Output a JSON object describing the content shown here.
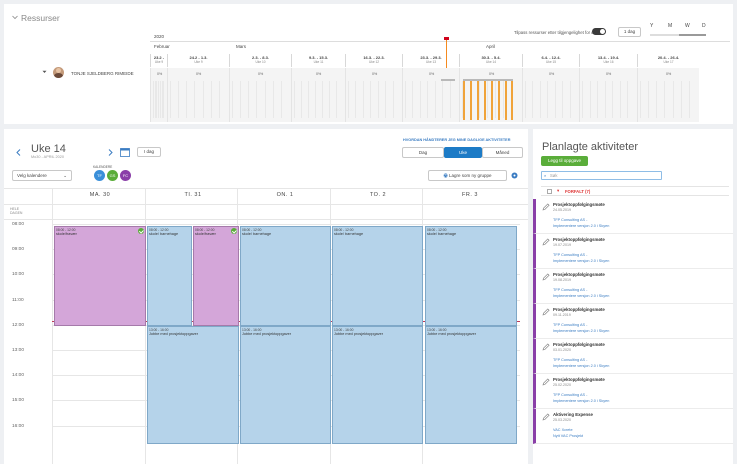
{
  "resources": {
    "title": "Ressurser",
    "show_capacity_label": "Tilpass ressurser etter tilgjengelighet for dag",
    "range_button": "1 dag",
    "zoom_options": [
      "Y",
      "M",
      "W",
      "D"
    ],
    "year": "2020",
    "months": [
      "Februar",
      "Mars",
      "April"
    ],
    "weeks": [
      {
        "date": "23.2 -",
        "week": "Uke 9"
      },
      {
        "date": "24.2 - 1.3.",
        "week": "Uke 9"
      },
      {
        "date": "2.3. - 8.3.",
        "week": "Uke 10"
      },
      {
        "date": "9.3. - 15.3.",
        "week": "Uke 11"
      },
      {
        "date": "16.3. - 22.3.",
        "week": "Uke 12"
      },
      {
        "date": "23.3. - 29.3.",
        "week": "Uke 13"
      },
      {
        "date": "30.3. - 5.4.",
        "week": "Uke 14"
      },
      {
        "date": "6.4. - 12.4.",
        "week": "Uke 15"
      },
      {
        "date": "13.4. - 19.4.",
        "week": "Uke 16"
      },
      {
        "date": "20.4. - 26.4.",
        "week": "Uke 17"
      }
    ],
    "person": "TONJE SJELDBERG RIMEIDE",
    "percent": [
      "0%",
      "0%",
      "0%",
      "0%",
      "0%",
      "0%",
      "0%",
      "0%",
      "0%",
      "0%"
    ]
  },
  "calendar": {
    "week_title": "Uke 14",
    "date_range": "Mo30 - APRIL 2020",
    "today_button": "I dag",
    "copy_link": "HVORDAN HÅNDTERER JEG MINE DAGLIGE AKTIVITETER",
    "views": [
      "Dag",
      "Uke",
      "Måned"
    ],
    "active_view": "Uke",
    "calendar_select": "Velg kalendere",
    "calendars_label": "KALENDERE",
    "calendar_circles": [
      {
        "initials": "TF",
        "color": "#3a8fd9"
      },
      {
        "initials": "GS",
        "color": "#5aad3a"
      },
      {
        "initials": "FC",
        "color": "#8a3fa8"
      }
    ],
    "save_group_button": "Lagre som ny gruppe",
    "days": [
      "MA. 30",
      "TI. 31",
      "ON. 1",
      "TO. 2",
      "FR. 3"
    ],
    "hours": [
      "08:00",
      "09:00",
      "10:00",
      "11:00",
      "12:00",
      "13:00",
      "14:00",
      "15:00",
      "16:00"
    ],
    "allday_label": "HELE DAGEN",
    "events": [
      {
        "time": "08:00 - 12:00",
        "title": "skole/fravær",
        "color": "purple"
      },
      {
        "time": "08:00 - 12:00",
        "title": "skole/ barnehage",
        "color": "blue"
      },
      {
        "time": "08:00 - 12:00",
        "title": "skole/fravær",
        "color": "purple"
      },
      {
        "time": "08:00 - 12:00",
        "title": "skole/ barnehage",
        "color": "blue"
      },
      {
        "time": "08:00 - 12:00",
        "title": "skole/ barnehage",
        "color": "blue"
      },
      {
        "time": "08:00 - 12:00",
        "title": "skole/ barnehage",
        "color": "blue"
      },
      {
        "time": "13:00 - 16:00",
        "title": "Jobbe med prosjektoppgaver",
        "color": "blue"
      },
      {
        "time": "13:00 - 16:00",
        "title": "Jobbe med prosjektoppgaver",
        "color": "blue"
      },
      {
        "time": "13:00 - 16:00",
        "title": "Jobbe med prosjektoppgaver",
        "color": "blue"
      },
      {
        "time": "13:00 - 16:00",
        "title": "Jobbe med prosjektoppgaver",
        "color": "blue"
      }
    ]
  },
  "activities": {
    "title": "Planlagte aktiviteter",
    "add_button": "Legg til oppgave",
    "search_placeholder": "Søk",
    "group_label": "FORFALT (7)",
    "items": [
      {
        "title": "Prosjektoppfølgingsmøte",
        "date": "24.05.2019",
        "line1": "TFP Consulting AS -",
        "line2": "Implementere versjon 2.0 i Skyen"
      },
      {
        "title": "Prosjektoppfølgingsmøte",
        "date": "19.07.2019",
        "line1": "TFP Consulting AS -",
        "line2": "Implementere versjon 2.0 i Skyen"
      },
      {
        "title": "Prosjektoppfølgingsmøte",
        "date": "19.08.2019",
        "line1": "TFP Consulting AS -",
        "line2": "Implementere versjon 2.0 i Skyen"
      },
      {
        "title": "Prosjektoppfølgingsmøte",
        "date": "09.11.2019",
        "line1": "TFP Consulting AS -",
        "line2": "Implementere versjon 2.0 i Skyen"
      },
      {
        "title": "Prosjektoppfølgingsmøte",
        "date": "03.01.2020",
        "line1": "TFP Consulting AS -",
        "line2": "Implementere versjon 2.0 i Skyen"
      },
      {
        "title": "Prosjektoppfølgingsmøte",
        "date": "25.02.2020",
        "line1": "TFP Consulting AS -",
        "line2": "Implementere versjon 2.0 i Skyen"
      },
      {
        "title": "Aktivering Expense",
        "date": "25.03.2020",
        "line1": "VAC Xcrete",
        "line2": "Nytt VAC Prosjekt"
      }
    ]
  }
}
